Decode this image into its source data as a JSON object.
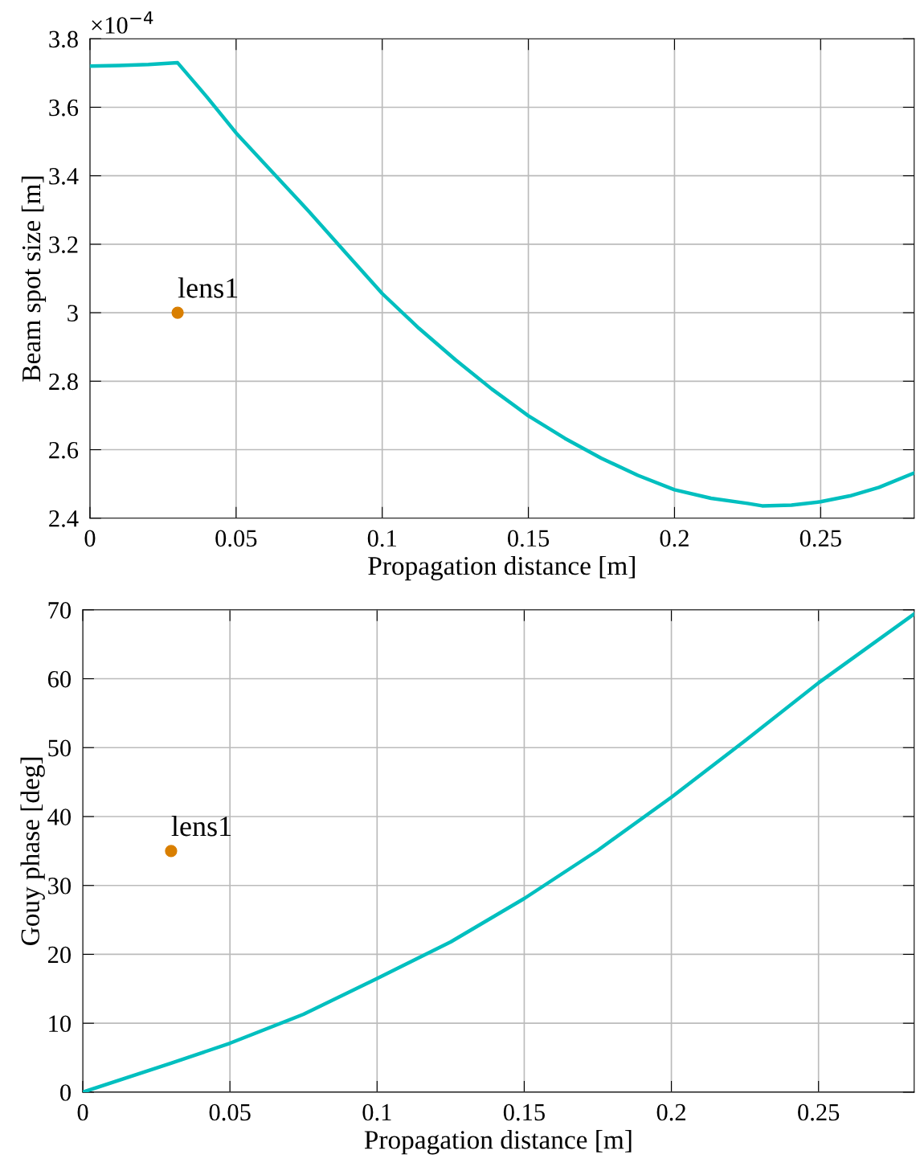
{
  "chart_data": [
    {
      "type": "line",
      "xlabel": "Propagation distance [m]",
      "ylabel": "Beam spot size [m]",
      "xlim": [
        0,
        0.282
      ],
      "xticks": [
        0,
        0.05,
        0.1,
        0.15,
        0.2,
        0.25
      ],
      "ylim": [
        2.4,
        3.8
      ],
      "yticks": [
        2.4,
        2.6,
        2.8,
        3,
        3.2,
        3.4,
        3.6,
        3.8
      ],
      "grid": true,
      "annotations": [
        "×10$^{−4}$",
        {
          "text": "lens1",
          "x": 0.03,
          "y": 3.0
        }
      ],
      "series": [
        {
          "color": "#00bfbf",
          "x": [
            0,
            0.01,
            0.02,
            0.03,
            0.04,
            0.05,
            0.0625,
            0.075,
            0.0875,
            0.1,
            0.1125,
            0.125,
            0.1375,
            0.15,
            0.1625,
            0.175,
            0.1875,
            0.2,
            0.2125,
            0.225,
            0.23,
            0.24,
            0.25,
            0.26,
            0.27,
            0.282
          ],
          "values": [
            3.72,
            3.722,
            3.725,
            3.73,
            3.63,
            3.525,
            3.41,
            3.295,
            3.175,
            3.056,
            2.955,
            2.863,
            2.777,
            2.699,
            2.633,
            2.575,
            2.525,
            2.483,
            2.458,
            2.443,
            2.436,
            2.438,
            2.448,
            2.465,
            2.49,
            2.532
          ]
        },
        {
          "type": "scatter",
          "color": "#d97f00",
          "marker": "circle",
          "x": [
            0.03
          ],
          "values": [
            3.0
          ]
        }
      ]
    },
    {
      "type": "line",
      "xlabel": "Propagation distance [m]",
      "ylabel": "Gouy phase [deg]",
      "xlim": [
        0,
        0.2825
      ],
      "xticks": [
        0,
        0.05,
        0.1,
        0.15,
        0.2,
        0.25
      ],
      "ylim": [
        0,
        70
      ],
      "yticks": [
        0,
        10,
        20,
        30,
        40,
        50,
        60,
        70
      ],
      "grid": true,
      "annotations": [
        {
          "text": "lens1",
          "x": 0.03,
          "y": 35
        }
      ],
      "series": [
        {
          "color": "#00bfbf",
          "x": [
            0,
            0.03,
            0.05,
            0.075,
            0.1,
            0.125,
            0.15,
            0.175,
            0.2,
            0.225,
            0.25,
            0.2825
          ],
          "values": [
            0,
            4.2,
            7.1,
            11.3,
            16.5,
            21.8,
            28.1,
            35.1,
            42.8,
            51.0,
            59.4,
            69.4
          ]
        },
        {
          "type": "scatter",
          "color": "#d97f00",
          "marker": "circle",
          "x": [
            0.03
          ],
          "values": [
            35
          ]
        }
      ]
    }
  ]
}
